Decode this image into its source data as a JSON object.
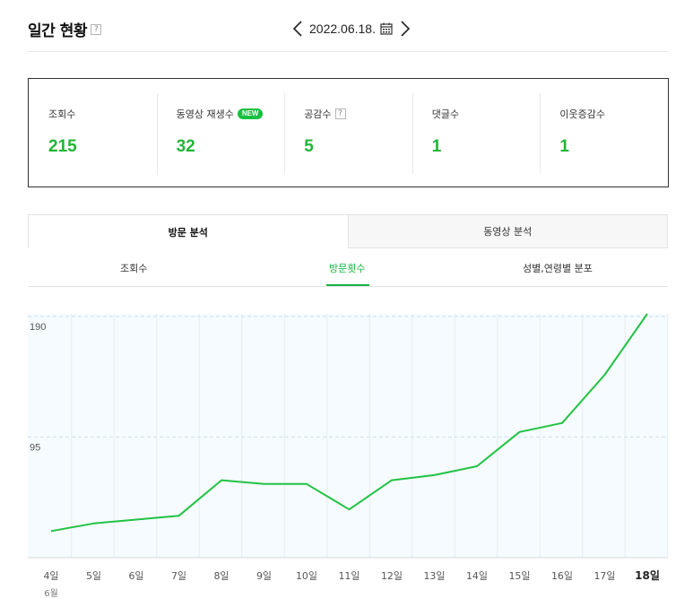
{
  "header": {
    "title": "일간 현황",
    "help": "?",
    "date": "2022.06.18."
  },
  "stats": [
    {
      "label": "조회수",
      "value": "215"
    },
    {
      "label": "동영상 재생수",
      "badge": "NEW",
      "value": "32"
    },
    {
      "label": "공감수",
      "help": "?",
      "value": "5"
    },
    {
      "label": "댓글수",
      "value": "1"
    },
    {
      "label": "이웃증감수",
      "value": "1"
    }
  ],
  "main_tabs": [
    {
      "label": "방문 분석",
      "active": true
    },
    {
      "label": "동영상 분석",
      "active": false
    }
  ],
  "sub_tabs": [
    {
      "label": "조회수",
      "active": false
    },
    {
      "label": "방문횟수",
      "active": true
    },
    {
      "label": "성별,연령별 분포",
      "active": false
    }
  ],
  "colors": {
    "accent": "#22b536",
    "line": "#21c243",
    "plot_bg": "#f5fbfe",
    "badge": "#16c040"
  },
  "chart_data": {
    "type": "line",
    "categories": [
      "4일",
      "5일",
      "6일",
      "7일",
      "8일",
      "9일",
      "10일",
      "11일",
      "12일",
      "13일",
      "14일",
      "15일",
      "16일",
      "17일",
      "18일"
    ],
    "x_sublabel": "6월",
    "series": [
      {
        "values": [
          21,
          27,
          30,
          33,
          61,
          58,
          58,
          38,
          61,
          65,
          72,
          99,
          106,
          144,
          192
        ]
      }
    ],
    "yticks": [
      95,
      190
    ],
    "ylim": [
      0,
      192
    ],
    "grid": true,
    "legend": "none"
  }
}
